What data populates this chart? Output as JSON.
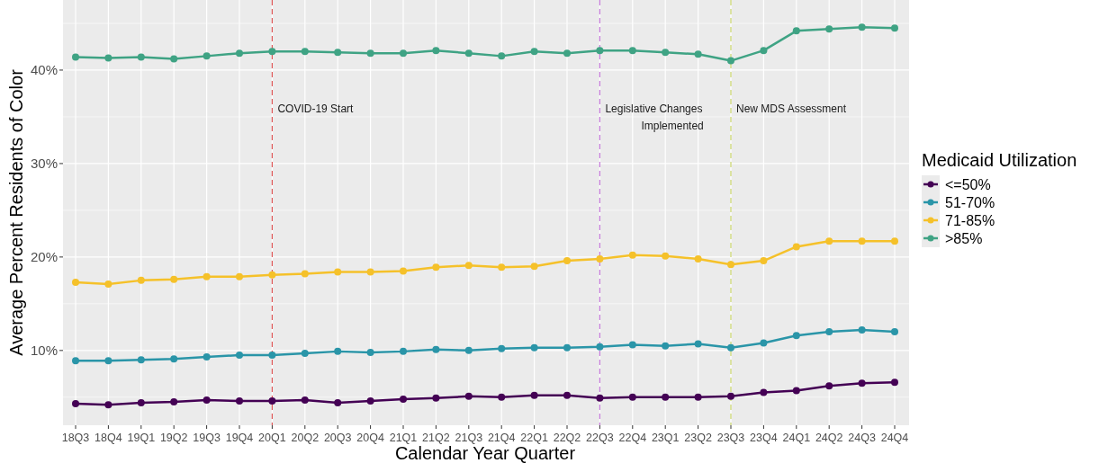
{
  "chart_data": {
    "type": "line",
    "xlabel": "Calendar Year Quarter",
    "ylabel": "Average Percent Residents of Color",
    "legend_title": "Medicaid Utilization",
    "categories": [
      "18Q3",
      "18Q4",
      "19Q1",
      "19Q2",
      "19Q3",
      "19Q4",
      "20Q1",
      "20Q2",
      "20Q3",
      "20Q4",
      "21Q1",
      "21Q2",
      "21Q3",
      "21Q4",
      "22Q1",
      "22Q2",
      "22Q3",
      "22Q4",
      "23Q1",
      "23Q2",
      "23Q3",
      "23Q4",
      "24Q1",
      "24Q2",
      "24Q3",
      "24Q4"
    ],
    "series": [
      {
        "name": "<=50%",
        "color": "#440154",
        "values": [
          4.3,
          4.2,
          4.4,
          4.5,
          4.7,
          4.6,
          4.6,
          4.7,
          4.4,
          4.6,
          4.8,
          4.9,
          5.1,
          5.0,
          5.2,
          5.2,
          4.9,
          5.0,
          5.0,
          5.0,
          5.1,
          5.5,
          5.7,
          6.2,
          6.5,
          6.6
        ]
      },
      {
        "name": "51-70%",
        "color": "#2a95a8",
        "values": [
          8.9,
          8.9,
          9.0,
          9.1,
          9.3,
          9.5,
          9.5,
          9.7,
          9.9,
          9.8,
          9.9,
          10.1,
          10.0,
          10.2,
          10.3,
          10.3,
          10.4,
          10.6,
          10.5,
          10.7,
          10.3,
          10.8,
          11.6,
          12.0,
          12.2,
          12.0
        ]
      },
      {
        "name": "71-85%",
        "color": "#f5c12a",
        "values": [
          17.3,
          17.1,
          17.5,
          17.6,
          17.9,
          17.9,
          18.1,
          18.2,
          18.4,
          18.4,
          18.5,
          18.9,
          19.1,
          18.9,
          19.0,
          19.6,
          19.8,
          20.2,
          20.1,
          19.8,
          19.2,
          19.6,
          21.1,
          21.7,
          21.7,
          21.7
        ]
      },
      {
        "name": ">85%",
        "color": "#3fa384",
        "values": [
          41.4,
          41.3,
          41.4,
          41.2,
          41.5,
          41.8,
          42.0,
          42.0,
          41.9,
          41.8,
          41.8,
          42.1,
          41.8,
          41.5,
          42.0,
          41.8,
          42.1,
          42.1,
          41.9,
          41.7,
          41.0,
          42.1,
          44.2,
          44.4,
          44.6,
          44.5
        ]
      }
    ],
    "ylim": [
      2,
      47.5
    ],
    "yticks": [
      {
        "value": 10,
        "label": "10%"
      },
      {
        "value": 20,
        "label": "20%"
      },
      {
        "value": 30,
        "label": "30%"
      },
      {
        "value": 40,
        "label": "40%"
      }
    ],
    "ref_lines": [
      {
        "axis": "x",
        "value": "20Q1",
        "label": "COVID-19 Start",
        "color": "#e05a5a",
        "line_style": "dashed"
      },
      {
        "axis": "x",
        "value": "22Q3",
        "label": "Legislative Changes\nImplemented",
        "color": "#c77cdb",
        "line_style": "dashed"
      },
      {
        "axis": "x",
        "value": "23Q3",
        "label": "New MDS Assessment",
        "color": "#c8d46a",
        "line_style": "dashed"
      }
    ],
    "grid": true,
    "legend": "right",
    "marker": "circle",
    "line_style": "solid"
  }
}
